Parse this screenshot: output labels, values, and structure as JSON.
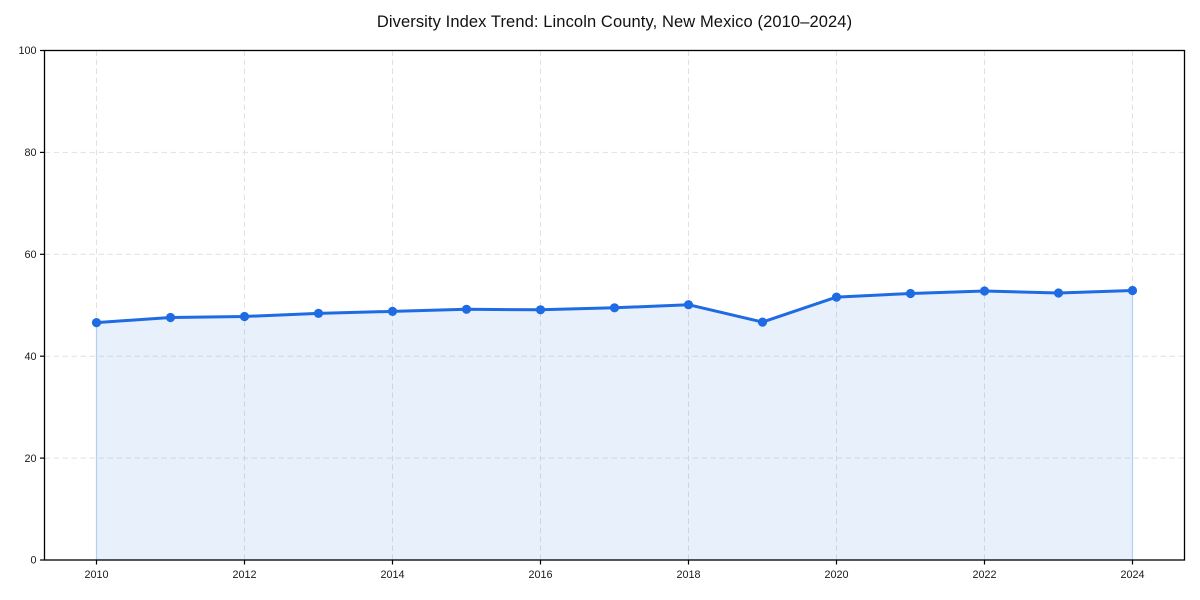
{
  "chart_data": {
    "type": "area",
    "title": "Diversity Index Trend: Lincoln County, New Mexico (2010–2024)",
    "xlabel": "",
    "ylabel": "",
    "x": [
      2010,
      2011,
      2012,
      2013,
      2014,
      2015,
      2016,
      2017,
      2018,
      2019,
      2020,
      2021,
      2022,
      2023,
      2024
    ],
    "values": [
      46.6,
      47.6,
      47.8,
      48.4,
      48.8,
      49.2,
      49.1,
      49.5,
      50.1,
      46.7,
      51.6,
      52.3,
      52.8,
      52.4,
      52.9
    ],
    "ylim": [
      0,
      100
    ],
    "xticks": [
      2010,
      2012,
      2014,
      2016,
      2018,
      2020,
      2022,
      2024
    ],
    "yticks": [
      0,
      20,
      40,
      60,
      80,
      100
    ],
    "grid": true,
    "legend": false,
    "colors": {
      "line": "#1e6be4",
      "marker": "#1e6be4",
      "fill_opacity": 0.1,
      "area_edge": "#b6d0f4",
      "grid": "#e1e1e1",
      "spine": "#000000",
      "tick_label": "#1a1a1a",
      "title": "#111111",
      "background": "#ffffff"
    }
  }
}
